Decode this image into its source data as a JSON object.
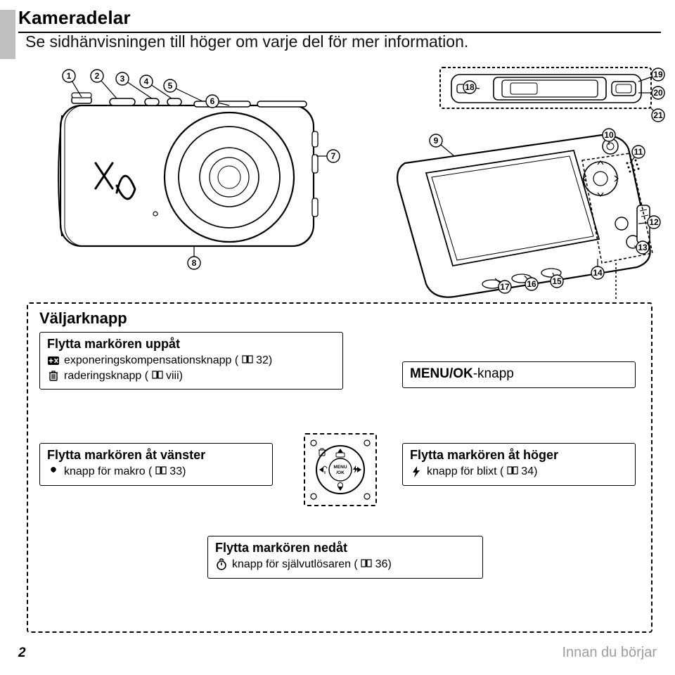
{
  "title": "Kameradelar",
  "subtitle": "Se sidhänvisningen till höger om varje del för mer information.",
  "callouts": [
    "1",
    "2",
    "3",
    "4",
    "5",
    "6",
    "7",
    "8",
    "9",
    "10",
    "11",
    "12",
    "13",
    "14",
    "15",
    "16",
    "17",
    "18",
    "19",
    "20",
    "21"
  ],
  "selector": {
    "heading": "Väljarknapp",
    "up": {
      "title": "Flytta markören uppåt",
      "line1_text": "exponeringskompensationsknapp (",
      "line1_ref": "32)",
      "line2_text": "raderingsknapp (",
      "line2_ref": "viii)"
    },
    "menu": {
      "label": "MENU/OK",
      "suffix": "-knapp"
    },
    "left": {
      "title": "Flytta markören åt vänster",
      "line1_text": "knapp för makro (",
      "line1_ref": "33)"
    },
    "right": {
      "title": "Flytta markören åt höger",
      "line1_text": "knapp för blixt (",
      "line1_ref": "34)"
    },
    "down": {
      "title": "Flytta markören nedåt",
      "line1_text": "knapp för självutlösaren (",
      "line1_ref": "36)"
    }
  },
  "dpad_center": "MENU\n/OK",
  "page_number": "2",
  "section_footer": "Innan du börjar",
  "style": {
    "callout_radius": 9,
    "callout_font": 12,
    "stroke": "#000000",
    "bg": "#ffffff",
    "book_icon": "📖"
  }
}
